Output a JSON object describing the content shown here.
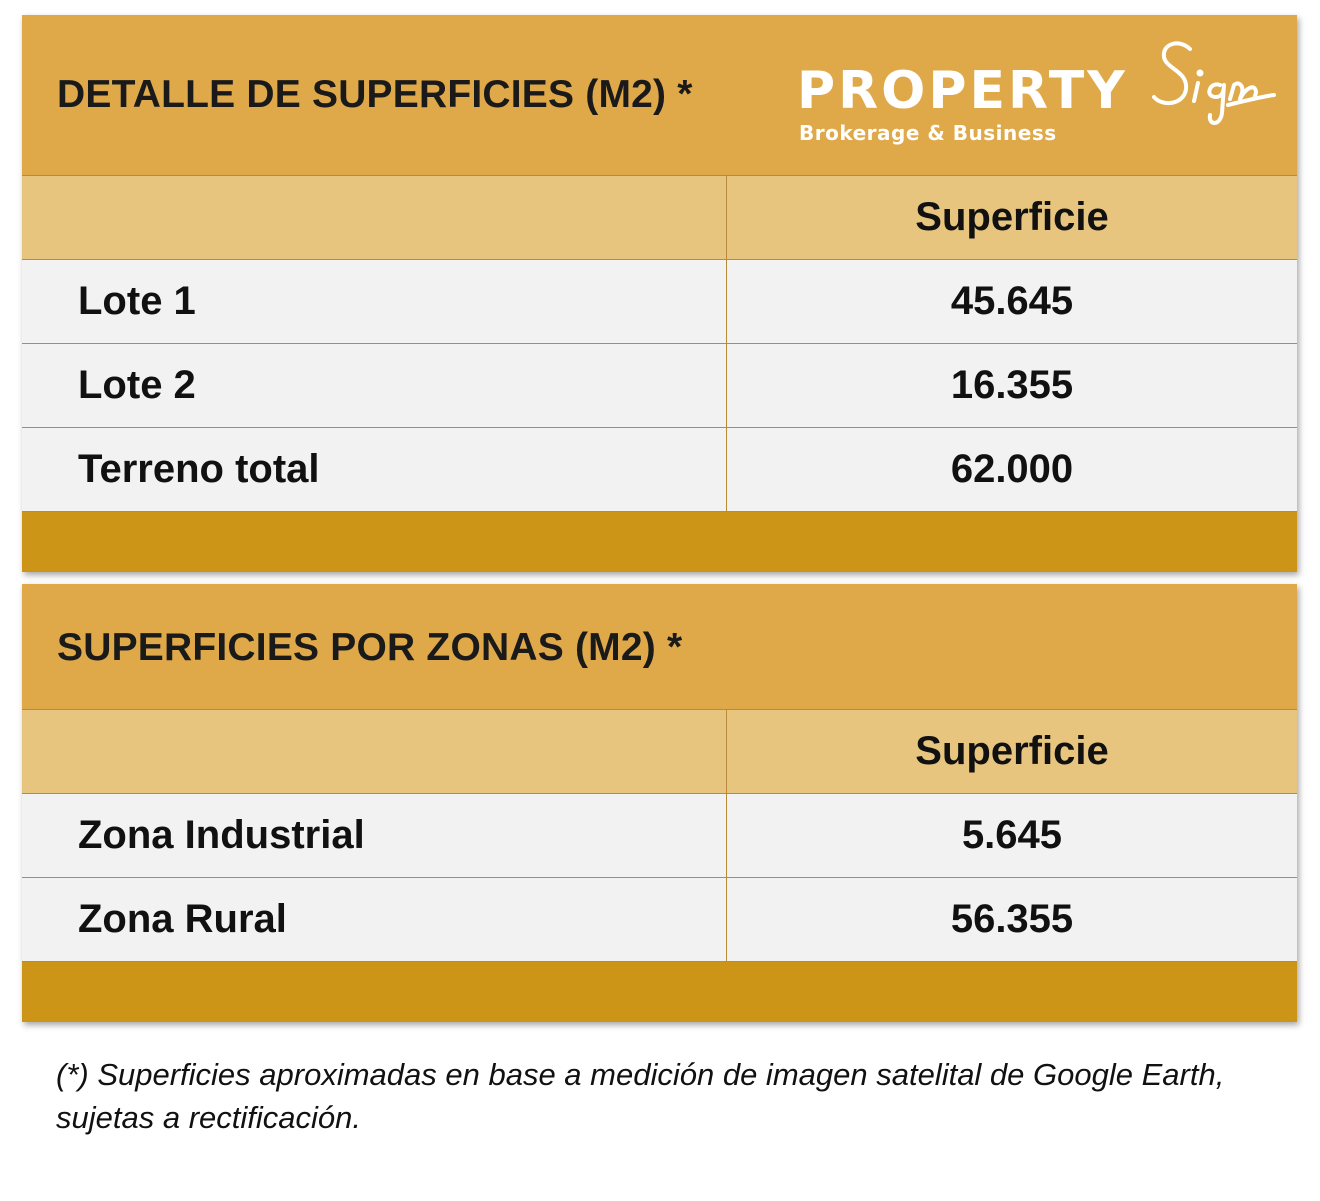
{
  "brand": {
    "name": "PROPERTY",
    "script": "Sign",
    "tagline": "Brokerage & Business"
  },
  "colors": {
    "title_band": "#dfa94a",
    "header_band": "#e8c57e",
    "row_bg": "#f2f2f2",
    "footer_band": "#cd9518",
    "border": "#b88a3a"
  },
  "table1": {
    "title": "DETALLE DE SUPERFICIES (M2) *",
    "column_header": "Superficie",
    "rows": [
      {
        "label": "Lote 1",
        "value": "45.645"
      },
      {
        "label": "Lote 2",
        "value": "16.355"
      },
      {
        "label": "Terreno total",
        "value": "62.000"
      }
    ]
  },
  "table2": {
    "title": "SUPERFICIES POR ZONAS (M2) *",
    "column_header": "Superficie",
    "rows": [
      {
        "label": "Zona Industrial",
        "value": "5.645"
      },
      {
        "label": "Zona Rural",
        "value": "56.355"
      }
    ]
  },
  "footnote": "(*) Superficies aproximadas en base a medición de imagen satelital de Google Earth, sujetas a rectificación."
}
